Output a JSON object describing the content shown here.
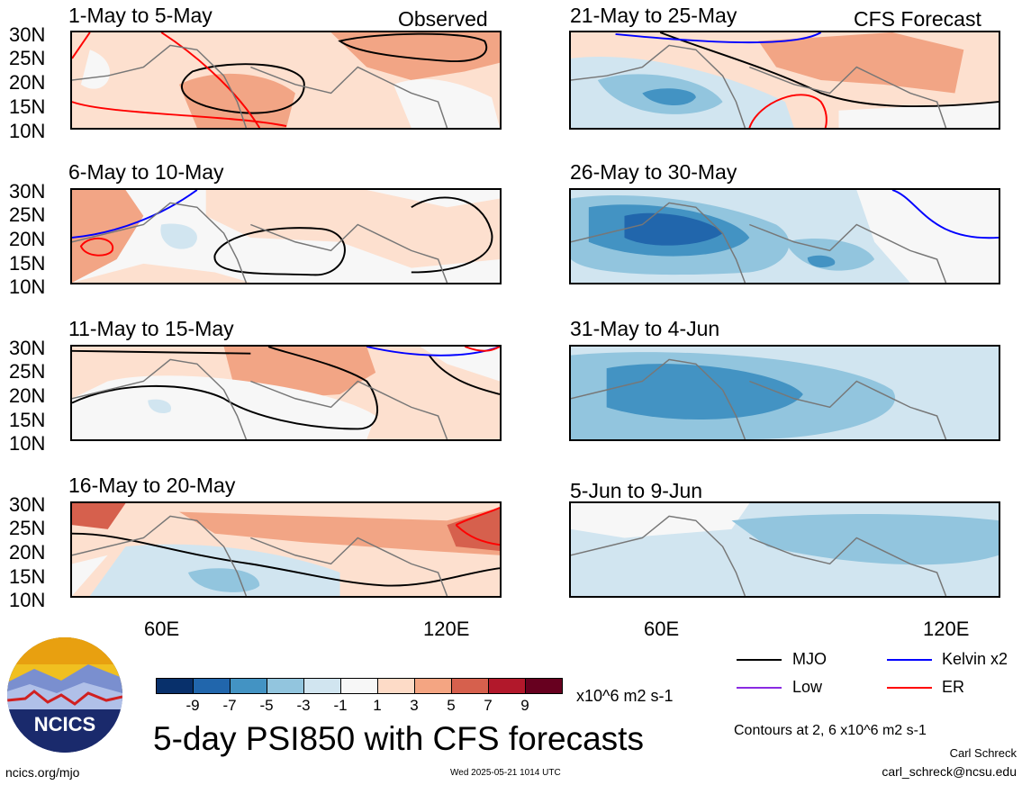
{
  "panels": [
    {
      "title": "1-May to 5-May",
      "tag": "Observed"
    },
    {
      "title": "6-May to 10-May",
      "tag": ""
    },
    {
      "title": "11-May to 15-May",
      "tag": ""
    },
    {
      "title": "16-May to 20-May",
      "tag": ""
    },
    {
      "title": "21-May to 25-May",
      "tag": "CFS Forecast"
    },
    {
      "title": "26-May to 30-May",
      "tag": ""
    },
    {
      "title": "31-May to 4-Jun",
      "tag": ""
    },
    {
      "title": "5-Jun to 9-Jun",
      "tag": ""
    }
  ],
  "lat_labels": [
    "30N",
    "25N",
    "20N",
    "15N",
    "10N"
  ],
  "lon_labels": [
    "60E",
    "120E"
  ],
  "colorbar": {
    "colors": [
      "#08306b",
      "#2166ac",
      "#4393c3",
      "#92c5de",
      "#d1e5f0",
      "#f7f7f7",
      "#fddbc7",
      "#f4a582",
      "#d6604d",
      "#b2182b",
      "#67001f"
    ],
    "ticks": [
      "-9",
      "-7",
      "-5",
      "-3",
      "-1",
      "1",
      "3",
      "5",
      "7",
      "9"
    ],
    "units": "x10^6 m2 s-1"
  },
  "main_title": "5-day PSI850 with CFS forecasts",
  "legend": [
    {
      "label": "MJO",
      "color": "#000000"
    },
    {
      "label": "Kelvin x2",
      "color": "#0000ff"
    },
    {
      "label": "Low",
      "color": "#8a2be2"
    },
    {
      "label": "ER",
      "color": "#ff0000"
    }
  ],
  "contours_note": "Contours at 2, 6 x10^6 m2 s-1",
  "author": "Carl Schreck",
  "email": "carl_schreck@ncsu.edu",
  "website": "ncics.org/mjo",
  "timestamp": "Wed 2025-05-21 1014 UTC",
  "logo_text": "NCICS"
}
